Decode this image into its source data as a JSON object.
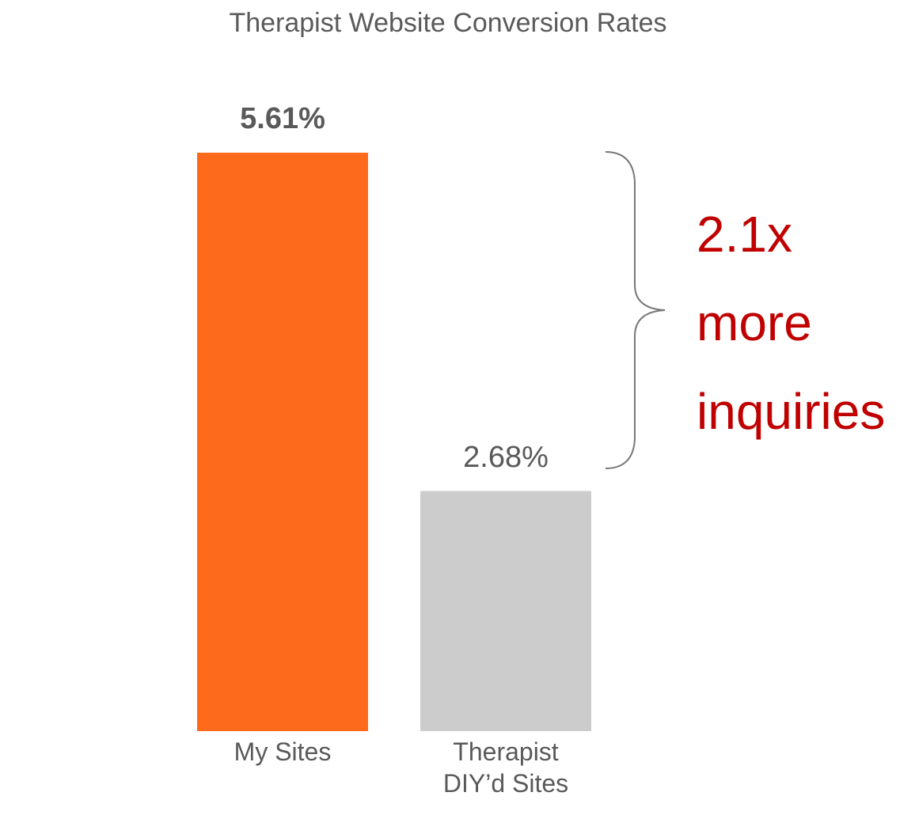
{
  "chart_data": {
    "type": "bar",
    "title": "Therapist Website Conversion Rates",
    "categories": [
      "My Sites",
      "Therapist DIY’d Sites"
    ],
    "values": [
      5.61,
      2.68
    ],
    "value_labels": [
      "5.61%",
      "2.68%"
    ],
    "colors": [
      "#fd6a1c",
      "#cccccc"
    ],
    "ylim": [
      0.6,
      5.61
    ],
    "annotation": "2.1x more inquiries"
  }
}
